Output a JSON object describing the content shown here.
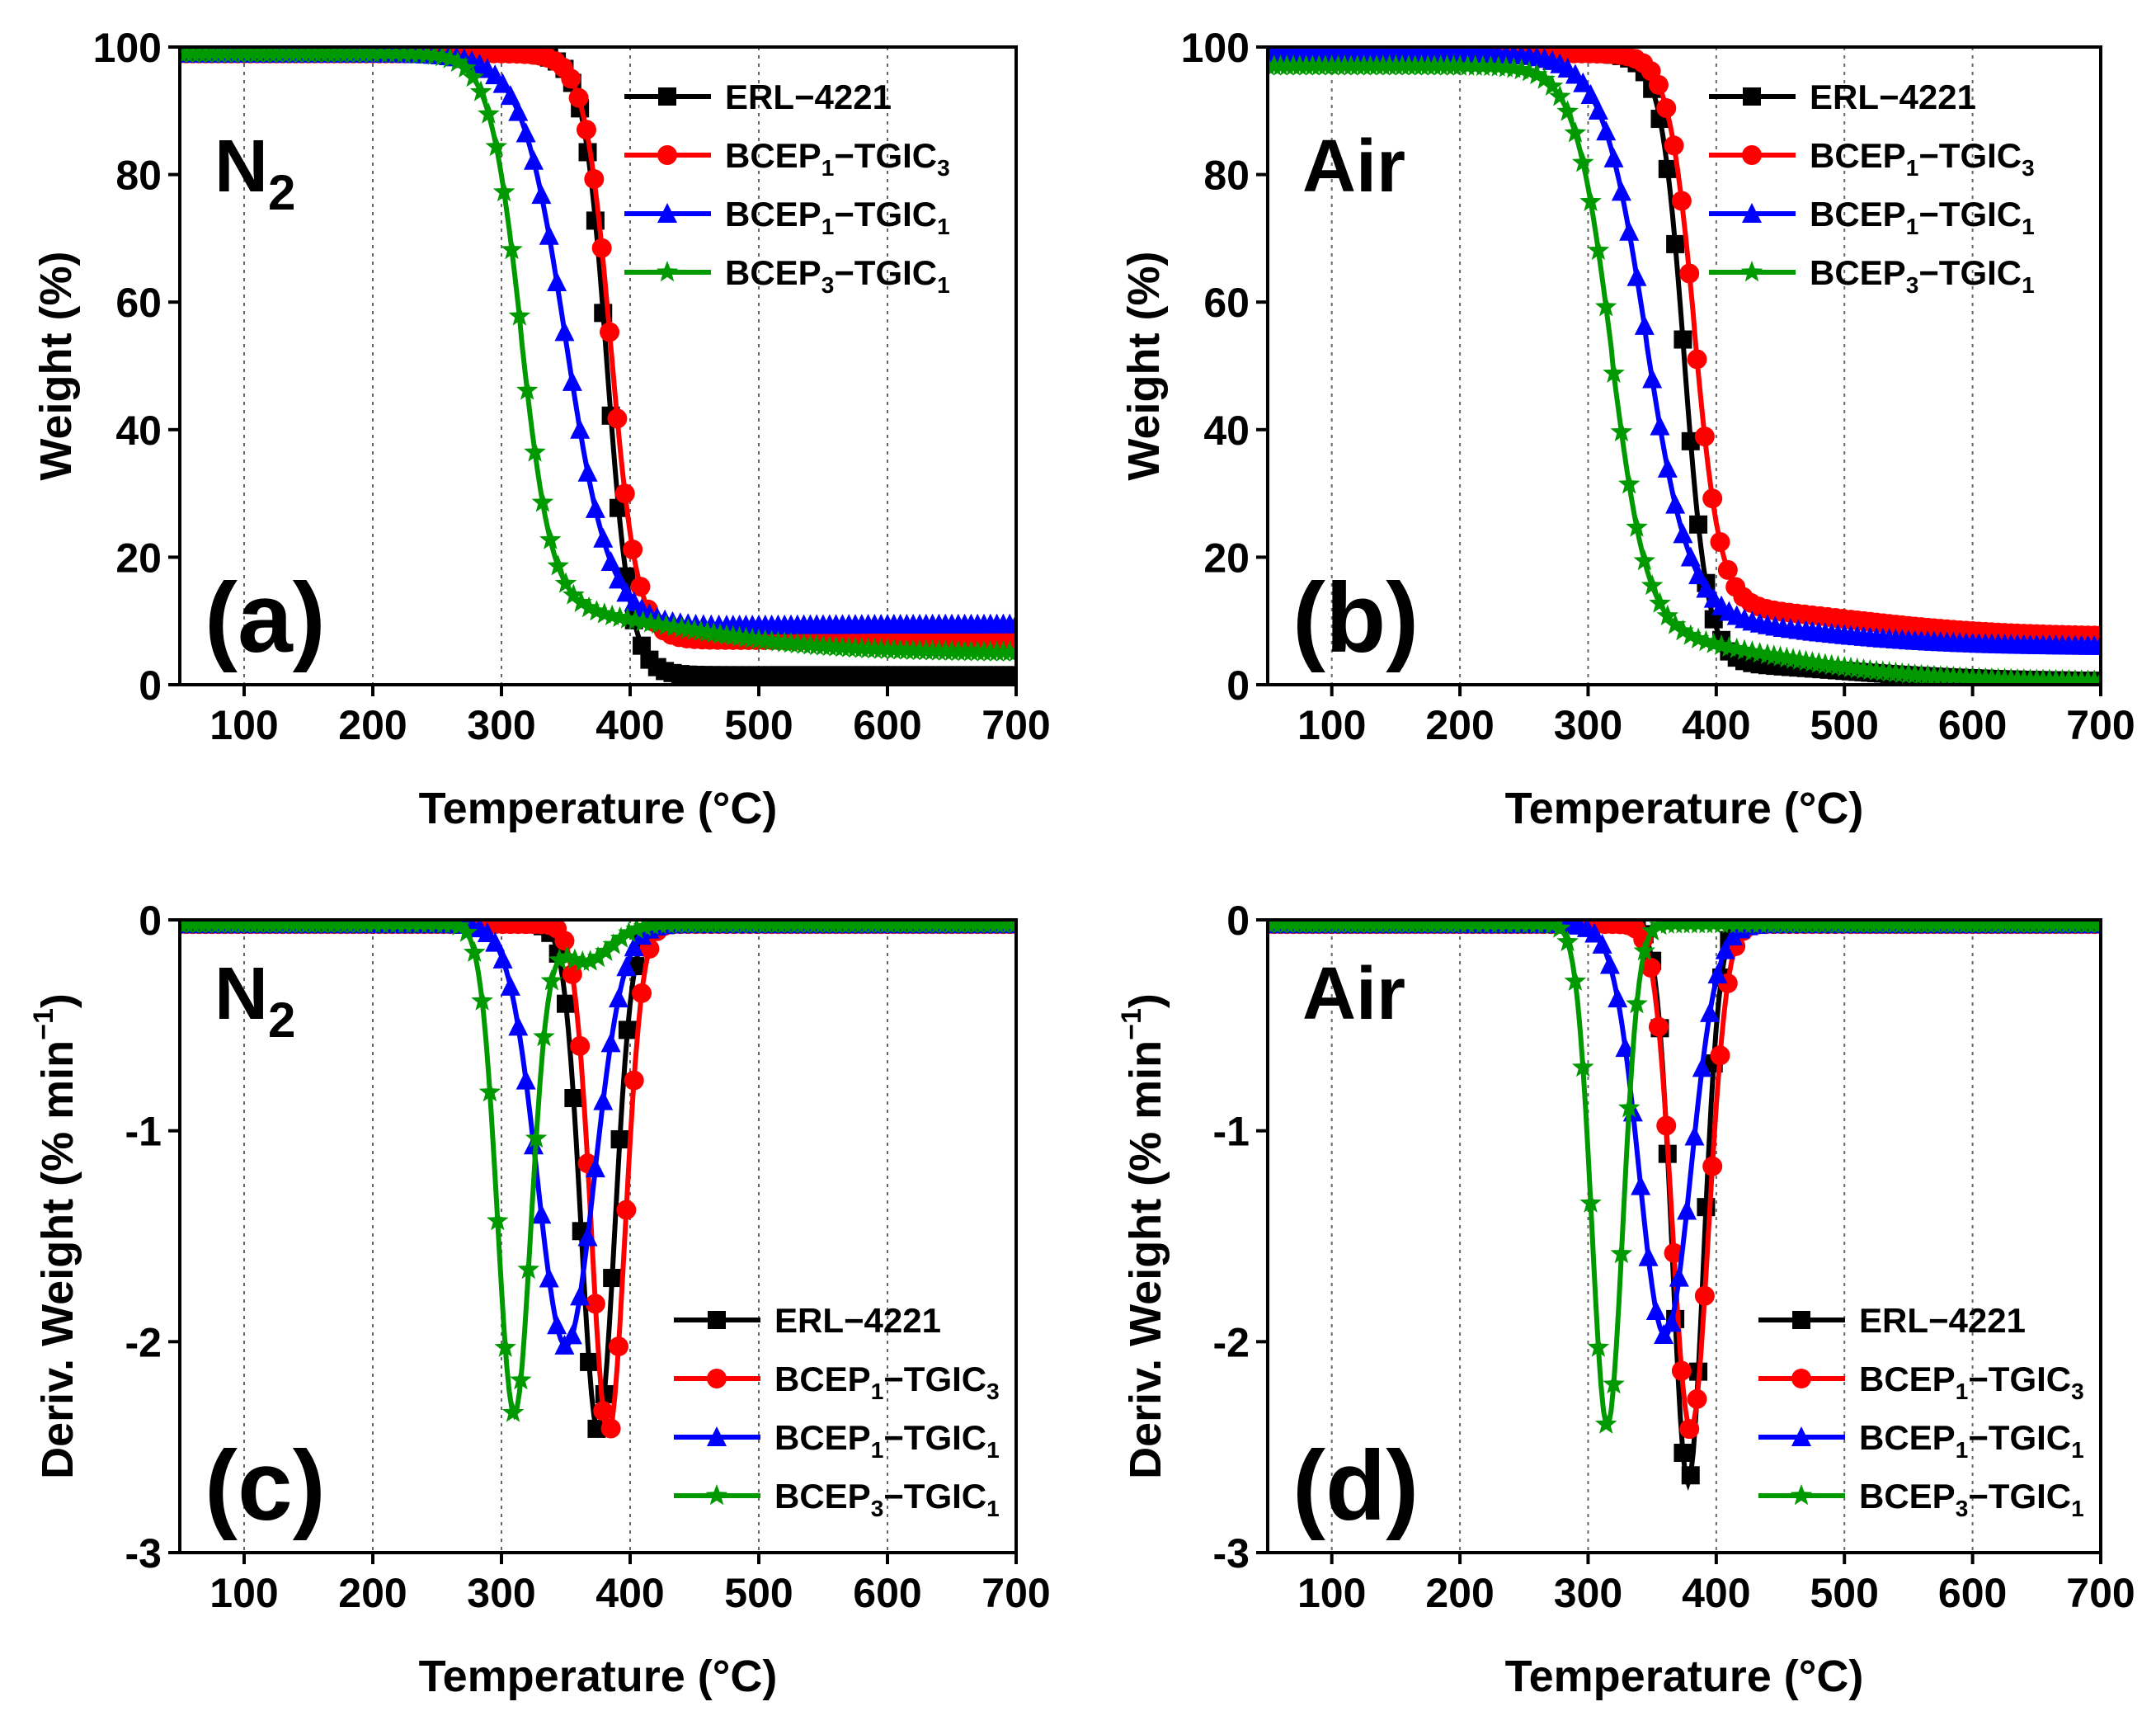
{
  "figure": {
    "x_axis_title": "Temperature (°C)",
    "tga_axis_title": "Weight (%)",
    "dtg_axis_title": "Deriv. Weight  (% min",
    "dtg_axis_title_sup": "−1",
    "dtg_axis_title_end": ")"
  },
  "series_styles": [
    {
      "key": "erl",
      "name": "ERL−4221",
      "label_main": "ERL−4221",
      "color": "#000000",
      "marker": "square"
    },
    {
      "key": "b1t3",
      "name": "BCEP1−TGIC3",
      "label_main": "BCEP",
      "sub1": "1",
      "label_mid": "−TGIC",
      "sub2": "3",
      "color": "#ff0000",
      "marker": "circle"
    },
    {
      "key": "b1t1",
      "name": "BCEP1−TGIC1",
      "label_main": "BCEP",
      "sub1": "1",
      "label_mid": "−TGIC",
      "sub2": "1",
      "color": "#0000ff",
      "marker": "triangle"
    },
    {
      "key": "b3t1",
      "name": "BCEP3−TGIC1",
      "label_main": "BCEP",
      "sub1": "3",
      "label_mid": "−TGIC",
      "sub2": "1",
      "color": "#009900",
      "marker": "star"
    }
  ],
  "chart_data": [
    {
      "panel": "(a)",
      "type": "line",
      "condition": "N",
      "condition_sub": "2",
      "xlabel": "Temperature (°C)",
      "ylabel": "Weight (%)",
      "xlim": [
        50,
        700
      ],
      "ylim": [
        0,
        100
      ],
      "xticks": [
        100,
        200,
        300,
        400,
        500,
        600,
        700
      ],
      "yticks": [
        0,
        20,
        40,
        60,
        80,
        100
      ],
      "legend": "top-right",
      "series": [
        {
          "key": "erl",
          "model": "sigmoid",
          "y0": 99,
          "yf": 1.5,
          "Tm": 382,
          "w": 9
        },
        {
          "key": "b1t3",
          "model": "sigmoid",
          "y0": 99,
          "yf": 7,
          "Tm": 385,
          "w": 10
        },
        {
          "key": "b1t1",
          "model": "sigmoid2",
          "y0": 99,
          "yf": 9,
          "Tm": 350,
          "w": 17,
          "yf_end": 9.5
        },
        {
          "key": "b3t1",
          "model": "sigmoid2",
          "y0": 99,
          "yf": 13,
          "Tm": 315,
          "w": 12,
          "yf_end": 5
        }
      ]
    },
    {
      "panel": "(b)",
      "type": "line",
      "condition": "Air",
      "condition_sub": "",
      "xlabel": "Temperature (°C)",
      "ylabel": "Weight (%)",
      "xlim": [
        50,
        700
      ],
      "ylim": [
        0,
        100
      ],
      "xticks": [
        100,
        200,
        300,
        400,
        500,
        600,
        700
      ],
      "yticks": [
        0,
        20,
        40,
        60,
        80,
        100
      ],
      "legend": "top-right",
      "series": [
        {
          "key": "erl",
          "model": "sigmoid2",
          "y0": 99,
          "yf": 4,
          "Tm": 375,
          "w": 9,
          "yf_end": 0.5
        },
        {
          "key": "b1t3",
          "model": "sigmoid2",
          "y0": 99,
          "yf": 13,
          "Tm": 383,
          "w": 10,
          "yf_end": 7.5
        },
        {
          "key": "b1t1",
          "model": "sigmoid2",
          "y0": 99,
          "yf": 11,
          "Tm": 345,
          "w": 17,
          "yf_end": 6
        },
        {
          "key": "b3t1",
          "model": "sigmoid2",
          "y0": 97,
          "yf": 9,
          "Tm": 318,
          "w": 14,
          "yf_end": 0.5
        }
      ]
    },
    {
      "panel": "(c)",
      "type": "line",
      "condition": "N",
      "condition_sub": "2",
      "xlabel": "Temperature (°C)",
      "ylabel": "Deriv. Weight (% min−1)",
      "xlim": [
        50,
        700
      ],
      "ylim": [
        -3,
        0
      ],
      "xticks": [
        100,
        200,
        300,
        400,
        500,
        600,
        700
      ],
      "yticks": [
        -3,
        -2,
        -1,
        0
      ],
      "legend": "bottom-right",
      "series": [
        {
          "key": "erl",
          "model": "peak",
          "Tp": 375,
          "depth": 2.4,
          "sigma": 13
        },
        {
          "key": "b1t3",
          "model": "peak",
          "Tp": 383,
          "depth": 2.42,
          "sigma": 13
        },
        {
          "key": "b1t1",
          "model": "peak",
          "Tp": 350,
          "depth": 2.0,
          "sigma": 22
        },
        {
          "key": "b3t1",
          "model": "peak",
          "Tp": 310,
          "depth": 2.32,
          "sigma": 13,
          "shoulder": 0.18
        }
      ]
    },
    {
      "panel": "(d)",
      "type": "line",
      "condition": "Air",
      "condition_sub": "",
      "xlabel": "Temperature (°C)",
      "ylabel": "Deriv. Weight (% min−1)",
      "xlim": [
        50,
        700
      ],
      "ylim": [
        -3,
        0
      ],
      "xticks": [
        100,
        200,
        300,
        400,
        500,
        600,
        700
      ],
      "yticks": [
        -3,
        -2,
        -1,
        0
      ],
      "legend": "bottom-right",
      "series": [
        {
          "key": "erl",
          "model": "peak",
          "Tp": 378,
          "depth": 2.65,
          "sigma": 12
        },
        {
          "key": "b1t3",
          "model": "peak",
          "Tp": 380,
          "depth": 2.4,
          "sigma": 14
        },
        {
          "key": "b1t1",
          "model": "peak",
          "Tp": 360,
          "depth": 1.95,
          "sigma": 20
        },
        {
          "key": "b3t1",
          "model": "peak",
          "Tp": 315,
          "depth": 2.38,
          "sigma": 12
        }
      ]
    }
  ]
}
